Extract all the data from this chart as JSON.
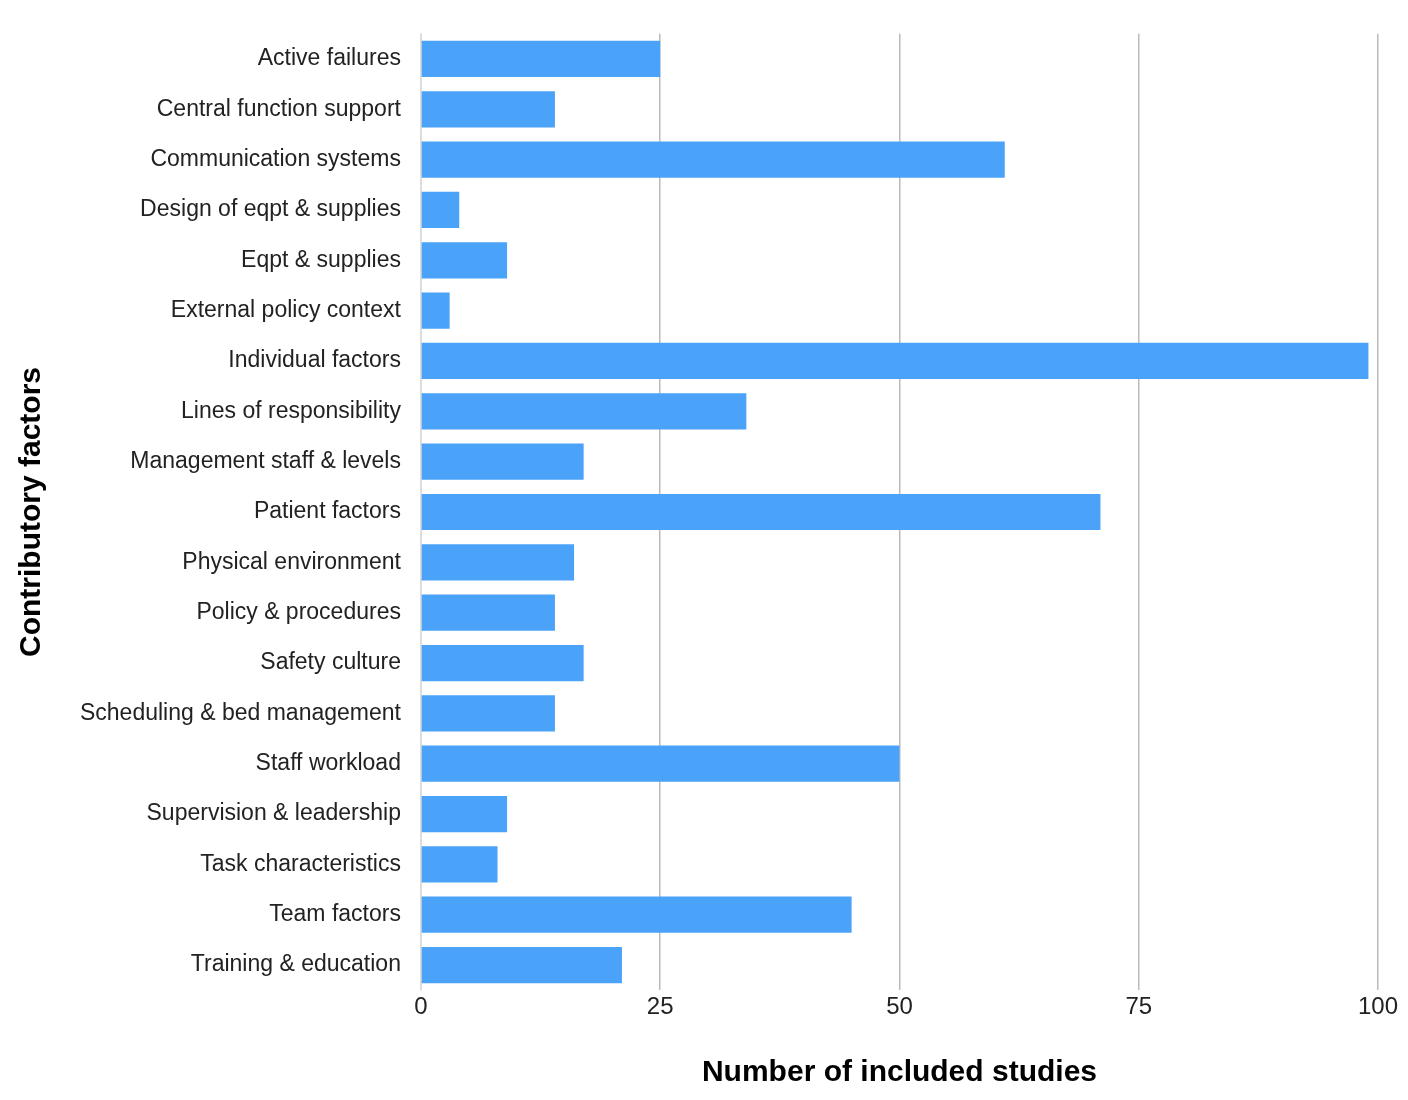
{
  "chart_data": {
    "type": "bar",
    "orientation": "horizontal",
    "xlabel": "Number of included studies",
    "ylabel": "Contributory factors",
    "categories": [
      "Active failures",
      "Central function support",
      "Communication systems",
      "Design of eqpt & supplies",
      "Eqpt & supplies",
      "External policy context",
      "Individual factors",
      "Lines of responsibility",
      "Management staff & levels",
      "Patient factors",
      "Physical environment",
      "Policy & procedures",
      "Safety culture",
      "Scheduling & bed management",
      "Staff workload",
      "Supervision & leadership",
      "Task characteristics",
      "Team factors",
      "Training & education"
    ],
    "values": [
      25,
      14,
      61,
      4,
      9,
      3,
      99,
      34,
      17,
      71,
      16,
      14,
      17,
      14,
      50,
      9,
      8,
      45,
      21
    ],
    "color": "#4aa3f8",
    "xlim": [
      0,
      100
    ],
    "xticks": [
      0,
      25,
      50,
      75,
      100
    ],
    "grid": "x",
    "legend": false
  }
}
